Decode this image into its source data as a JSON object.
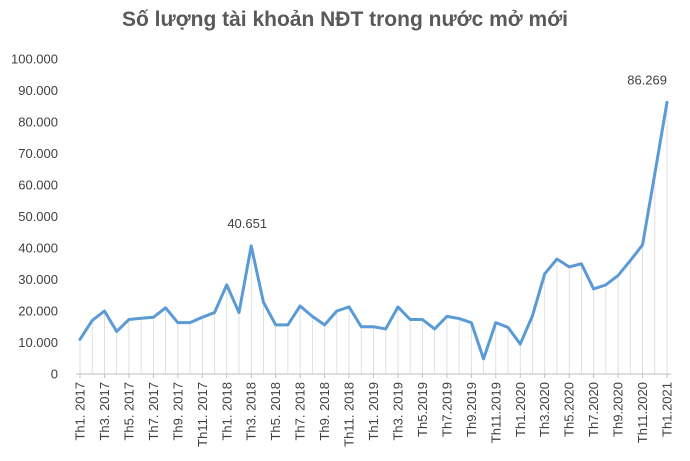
{
  "chart_data": {
    "type": "line",
    "title": "Số lượng tài khoản NĐT trong nước mở mới",
    "xlabel": "",
    "ylabel": "",
    "ylim": [
      0,
      100000
    ],
    "yticks": [
      0,
      10000,
      20000,
      30000,
      40000,
      50000,
      60000,
      70000,
      80000,
      90000,
      100000
    ],
    "ytick_labels": [
      "0",
      "10.000",
      "20.000",
      "30.000",
      "40.000",
      "50.000",
      "60.000",
      "70.000",
      "80.000",
      "90.000",
      "100.000"
    ],
    "x_tick_labels": [
      "Th1. 2017",
      "Th3. 2017",
      "Th5. 2017",
      "Th7. 2017",
      "Th9. 2017",
      "Th11. 2017",
      "Th1. 2018",
      "Th3. 2018",
      "Th5. 2018",
      "Th7. 2018",
      "Th9. 2018",
      "Th11. 2018",
      "Th1. 2019",
      "Th3. 2019",
      "Th5.2019",
      "Th7.2019",
      "Th9.2019",
      "Th11.2019",
      "Th1.2020",
      "Th3.2020",
      "Th5.2020",
      "Th7.2020",
      "Th9.2020",
      "Th11.2020",
      "Th1.2021"
    ],
    "grid": false,
    "color": "#5B9BD5",
    "series": [
      {
        "values": [
          11000,
          17000,
          20000,
          13500,
          17300,
          17700,
          18000,
          21000,
          16300,
          16300,
          18000,
          19500,
          28300,
          19500,
          40651,
          22800,
          15600,
          15600,
          21600,
          18300,
          15600,
          20000,
          21300,
          15000,
          15000,
          14300,
          21300,
          17300,
          17300,
          14300,
          18300,
          17600,
          16300,
          4800,
          16300,
          14800,
          9500,
          18500,
          31800,
          36500,
          34000,
          35000,
          27000,
          28300,
          31300,
          36000,
          41000,
          63500,
          86269
        ]
      }
    ],
    "annotations": [
      {
        "index": 14,
        "text": "40.651"
      },
      {
        "index": 48,
        "text": "86.269"
      }
    ]
  }
}
